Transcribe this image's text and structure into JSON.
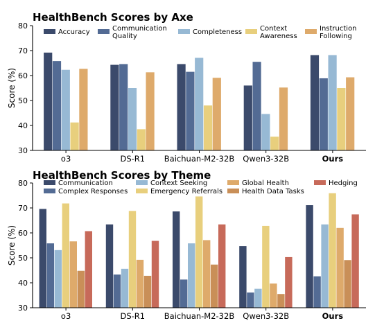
{
  "chart_data": [
    {
      "type": "bar",
      "title": "HealthBench Scores by Axe",
      "xlabel": "",
      "ylabel": "Score (%)",
      "ylim": [
        30,
        80
      ],
      "yticks": [
        30,
        40,
        50,
        60,
        70,
        80
      ],
      "categories": [
        "o3",
        "DS-R1",
        "Baichuan-M2-32B",
        "Qwen3-32B",
        "Ours"
      ],
      "bold_categories": [
        "Ours"
      ],
      "legend_position": "top",
      "grid": false,
      "series": [
        {
          "name": "Accuracy",
          "color": "#3b4a6b",
          "values": [
            69.2,
            64.3,
            64.6,
            56.0,
            68.2
          ]
        },
        {
          "name": "Communication\nQuality",
          "color": "#536b94",
          "values": [
            65.8,
            64.6,
            61.5,
            65.5,
            58.9
          ]
        },
        {
          "name": "Completeness",
          "color": "#97b9d4",
          "values": [
            62.3,
            55.0,
            67.1,
            44.6,
            68.2
          ]
        },
        {
          "name": "Context\nAwareness",
          "color": "#e8cf7d",
          "values": [
            41.2,
            38.5,
            48.0,
            35.5,
            55.0
          ]
        },
        {
          "name": "Instruction\nFollowing",
          "color": "#deaa6b",
          "values": [
            62.7,
            61.3,
            59.1,
            55.2,
            59.3
          ]
        }
      ]
    },
    {
      "type": "bar",
      "title": "HealthBench Scores by Theme",
      "xlabel": "",
      "ylabel": "Score (%)",
      "ylim": [
        30,
        80
      ],
      "yticks": [
        30,
        40,
        50,
        60,
        70,
        80
      ],
      "categories": [
        "o3",
        "DS-R1",
        "Baichuan-M2-32B",
        "Qwen3-32B",
        "Ours"
      ],
      "bold_categories": [
        "Ours"
      ],
      "legend_position": "top",
      "grid": false,
      "series": [
        {
          "name": "Communication",
          "color": "#3b4a6b",
          "values": [
            69.6,
            63.4,
            68.6,
            54.7,
            71.1
          ]
        },
        {
          "name": "Complex Responses",
          "color": "#536b94",
          "values": [
            55.8,
            43.3,
            41.3,
            36.1,
            42.6
          ]
        },
        {
          "name": "Context Seeking",
          "color": "#97b9d4",
          "values": [
            53.1,
            45.6,
            55.8,
            37.6,
            63.4
          ]
        },
        {
          "name": "Emergency Referrals",
          "color": "#e8cf7d",
          "values": [
            71.8,
            68.8,
            74.6,
            62.8,
            75.9
          ]
        },
        {
          "name": "Global Health",
          "color": "#deaa6b",
          "values": [
            56.6,
            49.2,
            57.1,
            39.7,
            62.0
          ]
        },
        {
          "name": "Health Data Tasks",
          "color": "#c98f58",
          "values": [
            44.8,
            42.8,
            47.3,
            35.5,
            49.1
          ]
        },
        {
          "name": "Hedging",
          "color": "#c76a5a",
          "values": [
            60.7,
            56.8,
            63.4,
            50.3,
            67.4
          ]
        }
      ]
    }
  ]
}
